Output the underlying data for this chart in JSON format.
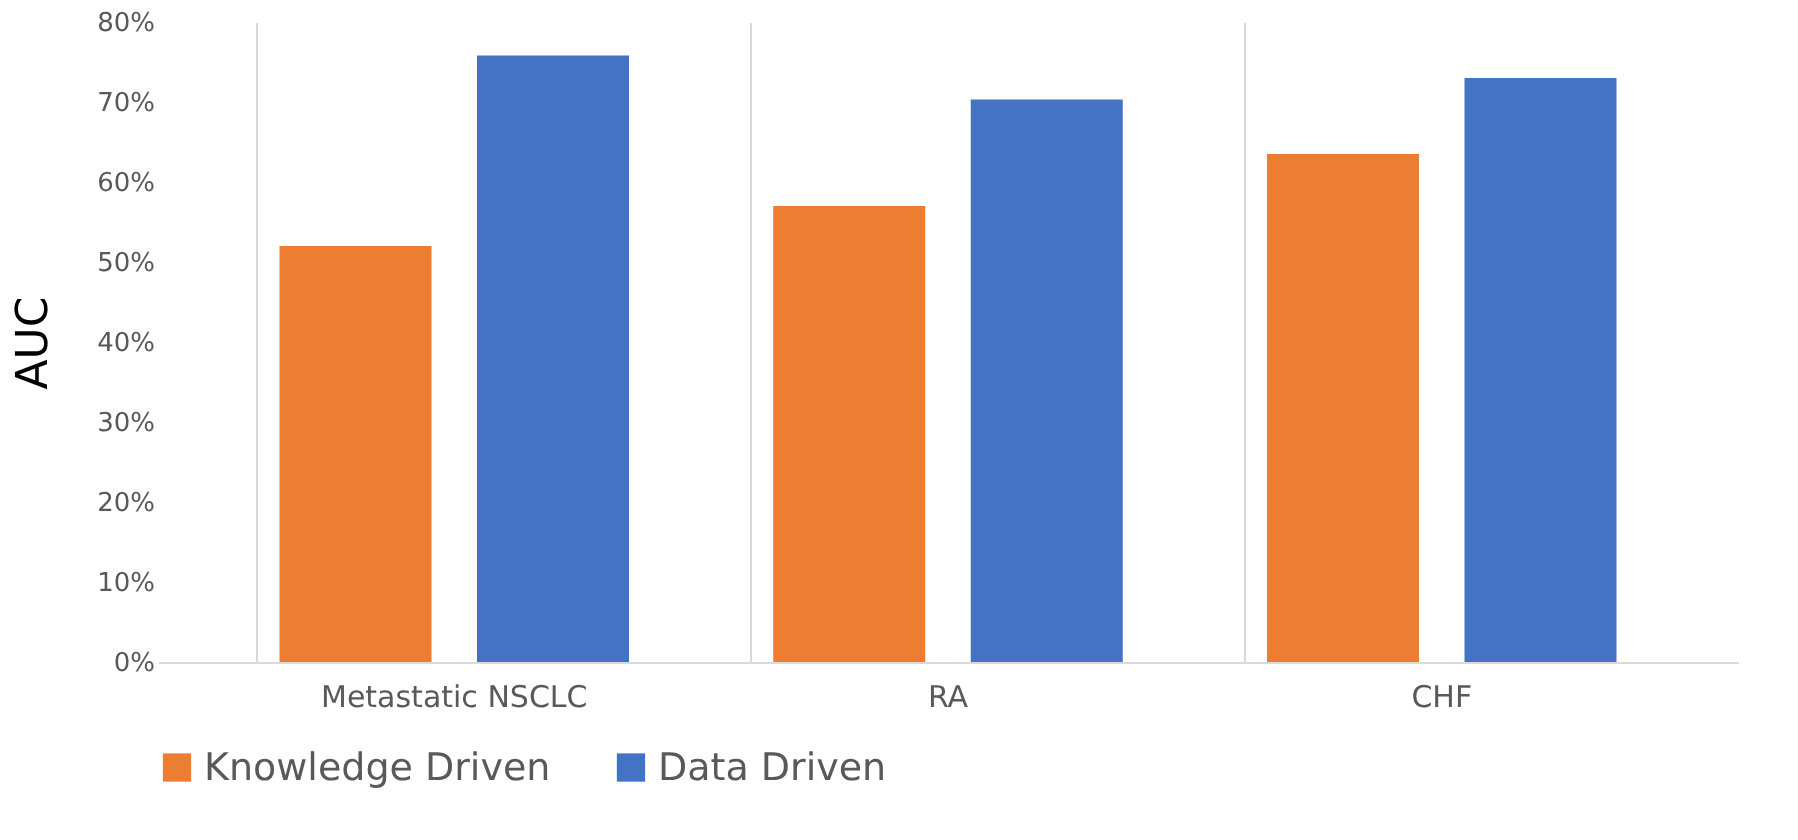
{
  "chart_data": {
    "type": "bar",
    "ylabel": "AUC",
    "categories": [
      "Metastatic NSCLC",
      "RA",
      "CHF"
    ],
    "series": [
      {
        "name": "Knowledge Driven",
        "color": "#ed7d31",
        "values": [
          52,
          57,
          63.5
        ]
      },
      {
        "name": "Data Driven",
        "color": "#4472c4",
        "values": [
          75.8,
          70.3,
          73
        ]
      }
    ],
    "ylim": [
      0,
      80
    ],
    "yticks": [
      {
        "value": 0,
        "label": "0%"
      },
      {
        "value": 10,
        "label": "10%"
      },
      {
        "value": 20,
        "label": "20%"
      },
      {
        "value": 30,
        "label": "30%"
      },
      {
        "value": 40,
        "label": "40%"
      },
      {
        "value": 50,
        "label": "50%"
      },
      {
        "value": 60,
        "label": "60%"
      },
      {
        "value": 70,
        "label": "70%"
      },
      {
        "value": 80,
        "label": "80%"
      }
    ],
    "grid": "x",
    "legend": "bottom"
  }
}
